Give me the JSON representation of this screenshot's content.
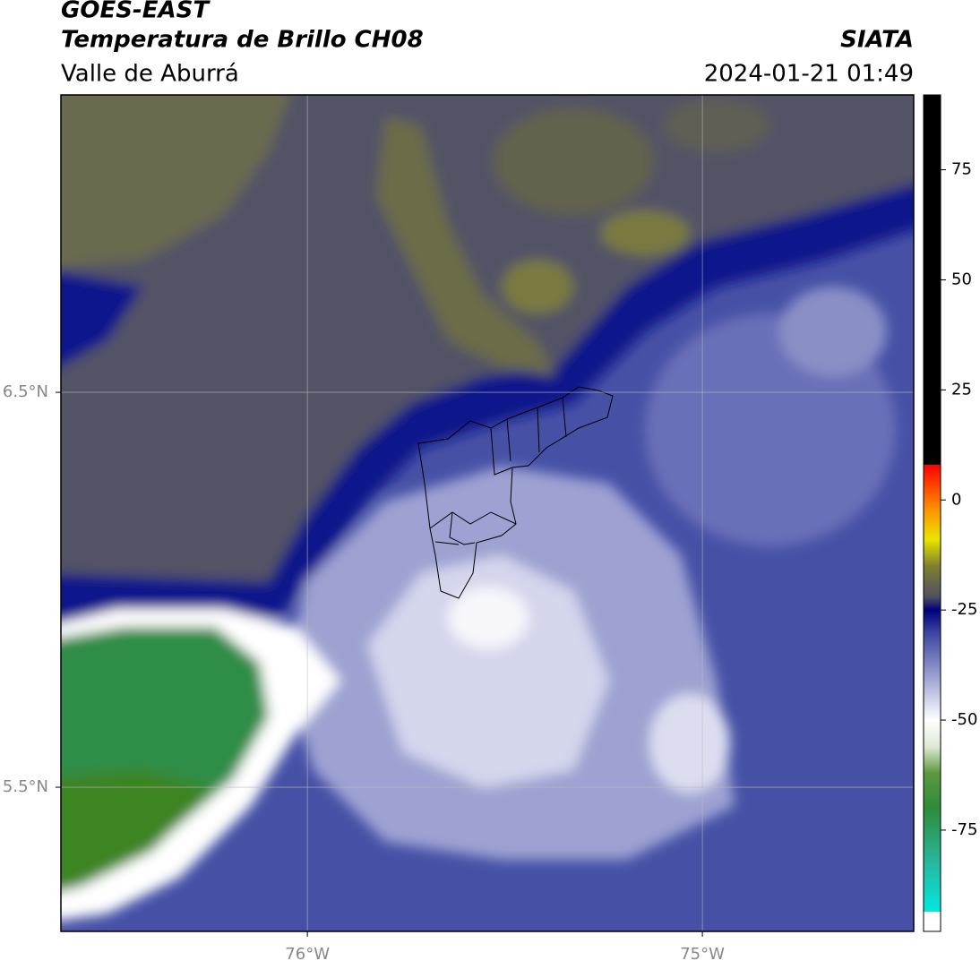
{
  "header": {
    "title": "GOES-EAST",
    "subtitle": "Temperatura de Brillo CH08",
    "region": "Valle de Aburrá",
    "source": "SIATA",
    "timestamp": "2024-01-21 01:49"
  },
  "map": {
    "xlim": [
      -76.624,
      -74.465
    ],
    "ylim": [
      5.135,
      7.253
    ],
    "xticks": [
      {
        "value": -76,
        "label": "76°W"
      },
      {
        "value": -75,
        "label": "75°W"
      }
    ],
    "yticks": [
      {
        "value": 6.5,
        "label": "6.5°N"
      },
      {
        "value": 5.5,
        "label": "5.5°N"
      }
    ],
    "grid": true
  },
  "colorbar": {
    "lim": [
      -98,
      92
    ],
    "ticks": [
      75,
      50,
      25,
      0,
      -25,
      -50,
      -75
    ],
    "colors": [
      {
        "value": -98,
        "color": "#ffffff"
      },
      {
        "value": -93.5,
        "color": "#ffffff"
      },
      {
        "value": -93.5,
        "color": "#00e8e0"
      },
      {
        "value": -82,
        "color": "#28b69a"
      },
      {
        "value": -70,
        "color": "#2e8b3a"
      },
      {
        "value": -62,
        "color": "#5c9a40"
      },
      {
        "value": -56,
        "color": "#dfead6"
      },
      {
        "value": -50,
        "color": "#ffffff"
      },
      {
        "value": -40,
        "color": "#9aa0d2"
      },
      {
        "value": -30,
        "color": "#3a44a0"
      },
      {
        "value": -25,
        "color": "#00007c"
      },
      {
        "value": -22,
        "color": "#505060"
      },
      {
        "value": -15,
        "color": "#808030"
      },
      {
        "value": -9,
        "color": "#e6e600"
      },
      {
        "value": -2,
        "color": "#ff9000"
      },
      {
        "value": 8,
        "color": "#ff0000"
      },
      {
        "value": 8,
        "color": "#000000"
      },
      {
        "value": 92,
        "color": "#000000"
      }
    ]
  }
}
